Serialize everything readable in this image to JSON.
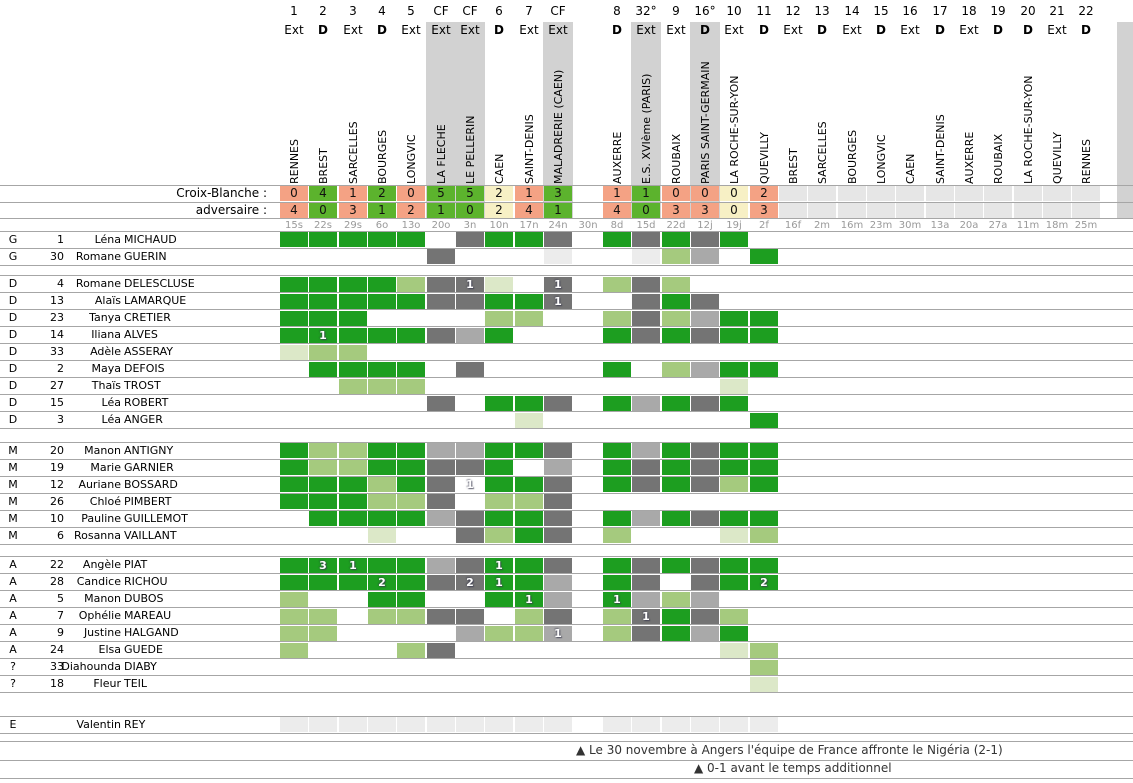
{
  "score_rows": {
    "home_label": "Croix-Blanche :",
    "away_label": "adversaire :"
  },
  "columns": [
    {
      "num": "1",
      "loc": "Ext",
      "opponent": "RENNES",
      "date": "15s",
      "home": "0",
      "away": "4",
      "result": "loss",
      "cup": false
    },
    {
      "num": "2",
      "loc": "D",
      "opponent": "BREST",
      "date": "22s",
      "home": "4",
      "away": "0",
      "result": "win",
      "cup": false
    },
    {
      "num": "3",
      "loc": "Ext",
      "opponent": "SARCELLES",
      "date": "29s",
      "home": "1",
      "away": "3",
      "result": "loss",
      "cup": false
    },
    {
      "num": "4",
      "loc": "D",
      "opponent": "BOURGES",
      "date": "6o",
      "home": "2",
      "away": "1",
      "result": "win",
      "cup": false
    },
    {
      "num": "5",
      "loc": "Ext",
      "opponent": "LONGVIC",
      "date": "13o",
      "home": "0",
      "away": "2",
      "result": "loss",
      "cup": false
    },
    {
      "num": "CF",
      "loc": "Ext",
      "opponent": "LA FLECHE",
      "date": "20o",
      "home": "5",
      "away": "1",
      "result": "win",
      "cup": true
    },
    {
      "num": "CF",
      "loc": "Ext",
      "opponent": "LE PELLERIN",
      "date": "3n",
      "home": "5",
      "away": "0",
      "result": "win",
      "cup": true
    },
    {
      "num": "6",
      "loc": "D",
      "opponent": "CAEN",
      "date": "10n",
      "home": "2",
      "away": "2",
      "result": "draw",
      "cup": false
    },
    {
      "num": "7",
      "loc": "Ext",
      "opponent": "SAINT-DENIS",
      "date": "17n",
      "home": "1",
      "away": "4",
      "result": "loss",
      "cup": false
    },
    {
      "num": "CF",
      "loc": "Ext",
      "opponent": "MALADRERIE (CAEN)",
      "date": "24n",
      "home": "3",
      "away": "1",
      "result": "win",
      "cup": true
    },
    {
      "num": "",
      "loc": "",
      "opponent": "",
      "date": "30n",
      "home": "",
      "away": "",
      "result": "none",
      "cup": false
    },
    {
      "num": "8",
      "loc": "D",
      "opponent": "AUXERRE",
      "date": "8d",
      "home": "1",
      "away": "4",
      "result": "loss",
      "cup": false
    },
    {
      "num": "32°",
      "loc": "Ext",
      "opponent": "E.S. XVIème (PARIS)",
      "date": "15d",
      "home": "1",
      "away": "0",
      "result": "win",
      "cup": true
    },
    {
      "num": "9",
      "loc": "Ext",
      "opponent": "ROUBAIX",
      "date": "22d",
      "home": "0",
      "away": "3",
      "result": "loss",
      "cup": false
    },
    {
      "num": "16°",
      "loc": "D",
      "opponent": "PARIS SAINT-GERMAIN",
      "date": "12j",
      "home": "0",
      "away": "3",
      "result": "loss",
      "cup": true
    },
    {
      "num": "10",
      "loc": "Ext",
      "opponent": "LA ROCHE-SUR-YON",
      "date": "19j",
      "home": "0",
      "away": "0",
      "result": "draw",
      "cup": false
    },
    {
      "num": "11",
      "loc": "D",
      "opponent": "QUEVILLY",
      "date": "2f",
      "home": "2",
      "away": "3",
      "result": "loss",
      "cup": false
    },
    {
      "num": "12",
      "loc": "Ext",
      "opponent": "BREST",
      "date": "16f",
      "home": "",
      "away": "",
      "result": "future",
      "cup": false
    },
    {
      "num": "13",
      "loc": "D",
      "opponent": "SARCELLES",
      "date": "2m",
      "home": "",
      "away": "",
      "result": "future",
      "cup": false
    },
    {
      "num": "14",
      "loc": "Ext",
      "opponent": "BOURGES",
      "date": "16m",
      "home": "",
      "away": "",
      "result": "future",
      "cup": false
    },
    {
      "num": "15",
      "loc": "D",
      "opponent": "LONGVIC",
      "date": "23m",
      "home": "",
      "away": "",
      "result": "future",
      "cup": false
    },
    {
      "num": "16",
      "loc": "Ext",
      "opponent": "CAEN",
      "date": "30m",
      "home": "",
      "away": "",
      "result": "future",
      "cup": false
    },
    {
      "num": "17",
      "loc": "D",
      "opponent": "SAINT-DENIS",
      "date": "13a",
      "home": "",
      "away": "",
      "result": "future",
      "cup": false
    },
    {
      "num": "18",
      "loc": "Ext",
      "opponent": "AUXERRE",
      "date": "20a",
      "home": "",
      "away": "",
      "result": "future",
      "cup": false
    },
    {
      "num": "19",
      "loc": "D",
      "opponent": "ROUBAIX",
      "date": "27a",
      "home": "",
      "away": "",
      "result": "future",
      "cup": false
    },
    {
      "num": "20",
      "loc": "D",
      "opponent": "LA ROCHE-SUR-YON",
      "date": "11m",
      "home": "",
      "away": "",
      "result": "future",
      "cup": false
    },
    {
      "num": "21",
      "loc": "Ext",
      "opponent": "QUEVILLY",
      "date": "18m",
      "home": "",
      "away": "",
      "result": "future",
      "cup": false
    },
    {
      "num": "22",
      "loc": "D",
      "opponent": "RENNES",
      "date": "25m",
      "home": "",
      "away": "",
      "result": "future",
      "cup": false
    }
  ],
  "groups": [
    {
      "name": "goalkeepers",
      "players": [
        {
          "pos": "G",
          "num": "1",
          "first": "Léna",
          "last": "MICHAUD",
          "cells": [
            "FG",
            "FG",
            "FG",
            "FG",
            "FG",
            "",
            "DG",
            "FG",
            "FG",
            "DG",
            "",
            "FG",
            "DG",
            "FG",
            "DG",
            "FG",
            ""
          ]
        },
        {
          "pos": "G",
          "num": "30",
          "first": "Romane",
          "last": "GUERIN",
          "cells": [
            "",
            "",
            "",
            "",
            "",
            "DG",
            "",
            "",
            "",
            "EG",
            "",
            "",
            "EG",
            "LG",
            "MG",
            "",
            "FG"
          ]
        }
      ]
    },
    {
      "name": "defenders",
      "players": [
        {
          "pos": "D",
          "num": "4",
          "first": "Romane",
          "last": "DELESCLUSE",
          "cells": [
            "FG",
            "FG",
            "FG",
            "FG",
            "LG",
            "DG",
            "DG:1",
            "PG",
            "",
            "DG:1",
            "",
            "LG",
            "DG",
            "LG",
            "",
            "",
            ""
          ]
        },
        {
          "pos": "D",
          "num": "13",
          "first": "Alaïs",
          "last": "LAMARQUE",
          "cells": [
            "FG",
            "FG",
            "FG",
            "FG",
            "FG",
            "DG",
            "DG",
            "FG",
            "FG",
            "DG:1",
            "",
            "",
            "DG",
            "FG",
            "DG",
            "",
            ""
          ]
        },
        {
          "pos": "D",
          "num": "23",
          "first": "Tanya",
          "last": "CRETIER",
          "cells": [
            "FG",
            "FG",
            "FG",
            "",
            "",
            "",
            "",
            "LG",
            "LG",
            "",
            "",
            "LG",
            "DG",
            "LG",
            "MG",
            "FG",
            "FG"
          ]
        },
        {
          "pos": "D",
          "num": "14",
          "first": "Iliana",
          "last": "ALVES",
          "cells": [
            "FG",
            "FG:1",
            "FG",
            "FG",
            "FG",
            "DG",
            "MG",
            "FG",
            "",
            "",
            "",
            "FG",
            "DG",
            "FG",
            "DG",
            "FG",
            "FG"
          ]
        },
        {
          "pos": "D",
          "num": "33",
          "first": "Adèle",
          "last": "ASSERAY",
          "cells": [
            "PG",
            "LG",
            "LG",
            "",
            "",
            "",
            "",
            "",
            "",
            "",
            "",
            "",
            "",
            "",
            "",
            "",
            ""
          ]
        },
        {
          "pos": "D",
          "num": "2",
          "first": "Maya",
          "last": "DEFOIS",
          "cells": [
            "",
            "FG",
            "FG",
            "FG",
            "FG",
            "",
            "DG",
            "",
            "",
            "",
            "",
            "FG",
            "",
            "LG",
            "MG",
            "FG",
            "FG"
          ]
        },
        {
          "pos": "D",
          "num": "27",
          "first": "Thaïs",
          "last": "TROST",
          "cells": [
            "",
            "",
            "LG",
            "LG",
            "LG",
            "",
            "",
            "",
            "",
            "",
            "",
            "",
            "",
            "",
            "",
            "PG",
            ""
          ]
        },
        {
          "pos": "D",
          "num": "15",
          "first": "Léa",
          "last": "ROBERT",
          "cells": [
            "",
            "",
            "",
            "",
            "",
            "DG",
            "",
            "FG",
            "FG",
            "DG",
            "",
            "FG",
            "MG",
            "FG",
            "DG",
            "FG",
            ""
          ]
        },
        {
          "pos": "D",
          "num": "3",
          "first": "Léa",
          "last": "ANGER",
          "cells": [
            "",
            "",
            "",
            "",
            "",
            "",
            "",
            "",
            "PG",
            "",
            "",
            "",
            "",
            "",
            "",
            "",
            "FG"
          ]
        }
      ]
    },
    {
      "name": "midfielders",
      "players": [
        {
          "pos": "M",
          "num": "20",
          "first": "Manon",
          "last": "ANTIGNY",
          "cells": [
            "FG",
            "LG",
            "LG",
            "FG",
            "FG",
            "MG",
            "MG",
            "FG",
            "FG",
            "DG",
            "",
            "FG",
            "MG",
            "FG",
            "DG",
            "FG",
            "FG"
          ]
        },
        {
          "pos": "M",
          "num": "19",
          "first": "Marie",
          "last": "GARNIER",
          "cells": [
            "FG",
            "LG",
            "LG",
            "FG",
            "FG",
            "DG",
            "DG",
            "FG",
            "",
            "MG",
            "",
            "FG",
            "DG",
            "FG",
            "DG",
            "FG",
            "FG"
          ]
        },
        {
          "pos": "M",
          "num": "12",
          "first": "Auriane",
          "last": "BOSSARD",
          "cells": [
            "FG",
            "FG",
            "FG",
            "LG",
            "FG",
            "DG",
            "WH:1",
            "FG",
            "FG",
            "DG",
            "",
            "FG",
            "DG",
            "FG",
            "DG",
            "LG",
            "FG"
          ]
        },
        {
          "pos": "M",
          "num": "26",
          "first": "Chloé",
          "last": "PIMBERT",
          "cells": [
            "FG",
            "FG",
            "FG",
            "LG",
            "LG",
            "DG",
            "",
            "LG",
            "LG",
            "DG",
            "",
            "",
            "",
            "",
            "",
            "",
            ""
          ]
        },
        {
          "pos": "M",
          "num": "10",
          "first": "Pauline",
          "last": "GUILLEMOT",
          "cells": [
            "",
            "FG",
            "FG",
            "FG",
            "FG",
            "MG",
            "DG",
            "FG",
            "FG",
            "DG",
            "",
            "FG",
            "MG",
            "FG",
            "DG",
            "FG",
            "FG"
          ]
        },
        {
          "pos": "M",
          "num": "6",
          "first": "Rosanna",
          "last": "VAILLANT",
          "cells": [
            "",
            "",
            "",
            "PG",
            "",
            "",
            "DG",
            "LG",
            "FG",
            "DG",
            "",
            "LG",
            "",
            "",
            "",
            "PG",
            "LG"
          ]
        }
      ]
    },
    {
      "name": "forwards",
      "players": [
        {
          "pos": "A",
          "num": "22",
          "first": "Angèle",
          "last": "PIAT",
          "cells": [
            "FG",
            "FG:3",
            "FG:1",
            "FG",
            "FG",
            "MG",
            "DG",
            "FG:1",
            "FG",
            "DG",
            "",
            "FG",
            "DG",
            "FG",
            "DG",
            "FG",
            "FG"
          ]
        },
        {
          "pos": "A",
          "num": "28",
          "first": "Candice",
          "last": "RICHOU",
          "cells": [
            "FG",
            "FG",
            "FG",
            "FG:2",
            "FG",
            "DG",
            "DG:2",
            "FG:1",
            "FG",
            "MG",
            "",
            "FG",
            "DG",
            "",
            "DG",
            "FG",
            "FG:2"
          ]
        },
        {
          "pos": "A",
          "num": "5",
          "first": "Manon",
          "last": "DUBOS",
          "cells": [
            "LG",
            "",
            "",
            "FG",
            "FG",
            "",
            "",
            "FG",
            "FG:1",
            "MG",
            "",
            "FG:1",
            "MG",
            "LG",
            "MG",
            "",
            ""
          ]
        },
        {
          "pos": "A",
          "num": "7",
          "first": "Ophélie",
          "last": "MAREAU",
          "cells": [
            "LG",
            "LG",
            "",
            "LG",
            "LG",
            "DG",
            "DG",
            "",
            "LG",
            "DG",
            "",
            "LG",
            "DG:1",
            "FG",
            "DG",
            "LG",
            ""
          ]
        },
        {
          "pos": "A",
          "num": "9",
          "first": "Justine",
          "last": "HALGAND",
          "cells": [
            "LG",
            "LG",
            "",
            "",
            "",
            "",
            "MG",
            "LG",
            "LG",
            "MG:1",
            "",
            "LG",
            "DG",
            "FG",
            "MG",
            "FG",
            ""
          ]
        },
        {
          "pos": "A",
          "num": "24",
          "first": "Elsa",
          "last": "GUEDE",
          "cells": [
            "LG",
            "",
            "",
            "",
            "LG",
            "DG",
            "",
            "",
            "",
            "",
            "",
            "",
            "",
            "",
            "",
            "PG",
            "LG"
          ]
        },
        {
          "pos": "?",
          "num": "33",
          "first": "Diahounda",
          "last": "DIABY",
          "cells": [
            "",
            "",
            "",
            "",
            "",
            "",
            "",
            "",
            "",
            "",
            "",
            "",
            "",
            "",
            "",
            "",
            "LG"
          ]
        },
        {
          "pos": "?",
          "num": "18",
          "first": "Fleur",
          "last": "TEIL",
          "cells": [
            "",
            "",
            "",
            "",
            "",
            "",
            "",
            "",
            "",
            "",
            "",
            "",
            "",
            "",
            "",
            "",
            "PG"
          ]
        }
      ]
    },
    {
      "name": "staff",
      "players": [
        {
          "pos": "E",
          "num": "",
          "first": "Valentin",
          "last": "REY",
          "cells": [
            "EG",
            "EG",
            "EG",
            "EG",
            "EG",
            "EG",
            "EG",
            "EG",
            "EG",
            "EG",
            "",
            "EG",
            "EG",
            "EG",
            "EG",
            "EG",
            "EG"
          ]
        }
      ]
    }
  ],
  "annotations": [
    {
      "text": "▲ Le 30 novembre à Angers l'équipe de France affronte le Nigéria (2-1)",
      "col": 10
    },
    {
      "text": "▲ 0-1 avant le temps additionnel",
      "col": 14
    }
  ],
  "colors": {
    "result": {
      "win": "#5cb32d",
      "loss": "#f4a284",
      "draw": "#f7f0c5",
      "future": "#e6e6e6",
      "none": ""
    },
    "cell": {
      "FG": "#1d9e20",
      "LG": "#a5ca7e",
      "PG": "#dce8c8",
      "DG": "#747474",
      "MG": "#a9a9a9",
      "EG": "#ececec",
      "WH": "#ffffff"
    },
    "cup_band": "#d2d2d2",
    "line": "#a6a6a6"
  }
}
